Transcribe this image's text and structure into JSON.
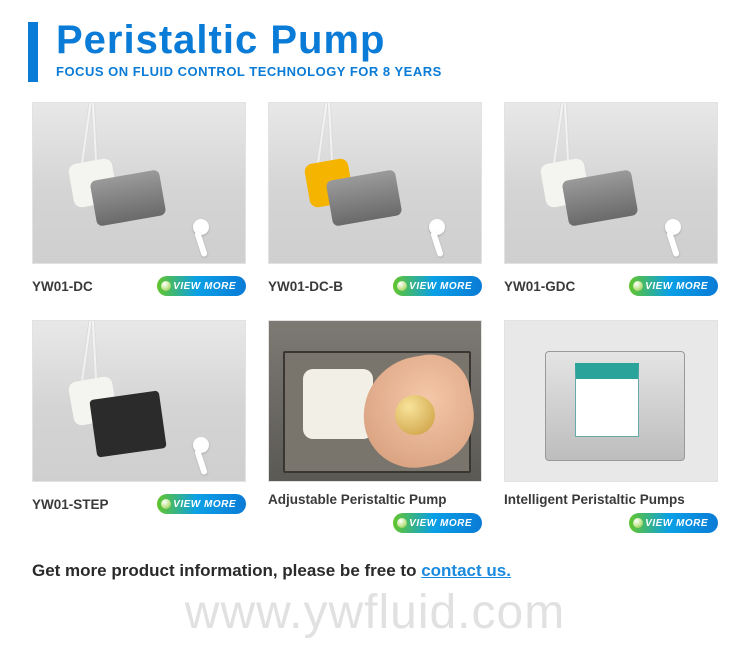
{
  "header": {
    "title": "Peristaltic Pump",
    "subtitle": "FOCUS ON FLUID CONTROL TECHNOLOGY FOR 8 YEARS",
    "bar_color": "#0a7bd6",
    "title_color": "#0a7bd6"
  },
  "button": {
    "label": "VIEW MORE",
    "gradient_start": "#62c52b",
    "gradient_mid": "#0aa0e6",
    "gradient_end": "#0a7bd6"
  },
  "products": [
    {
      "name": "YW01-DC",
      "variant": "dc"
    },
    {
      "name": "YW01-DC-B",
      "variant": "dc-b"
    },
    {
      "name": "YW01-GDC",
      "variant": "gdc"
    },
    {
      "name": "YW01-STEP",
      "variant": "step"
    },
    {
      "name": "Adjustable Peristaltic Pump",
      "variant": "adjustable"
    },
    {
      "name": "Intelligent Peristaltic Pumps",
      "variant": "intelligent"
    }
  ],
  "footer": {
    "pre": "Get more product information, please be free to ",
    "link": "contact us.",
    "link_color": "#1a8adf"
  },
  "watermark": "www.ywfluid.com"
}
